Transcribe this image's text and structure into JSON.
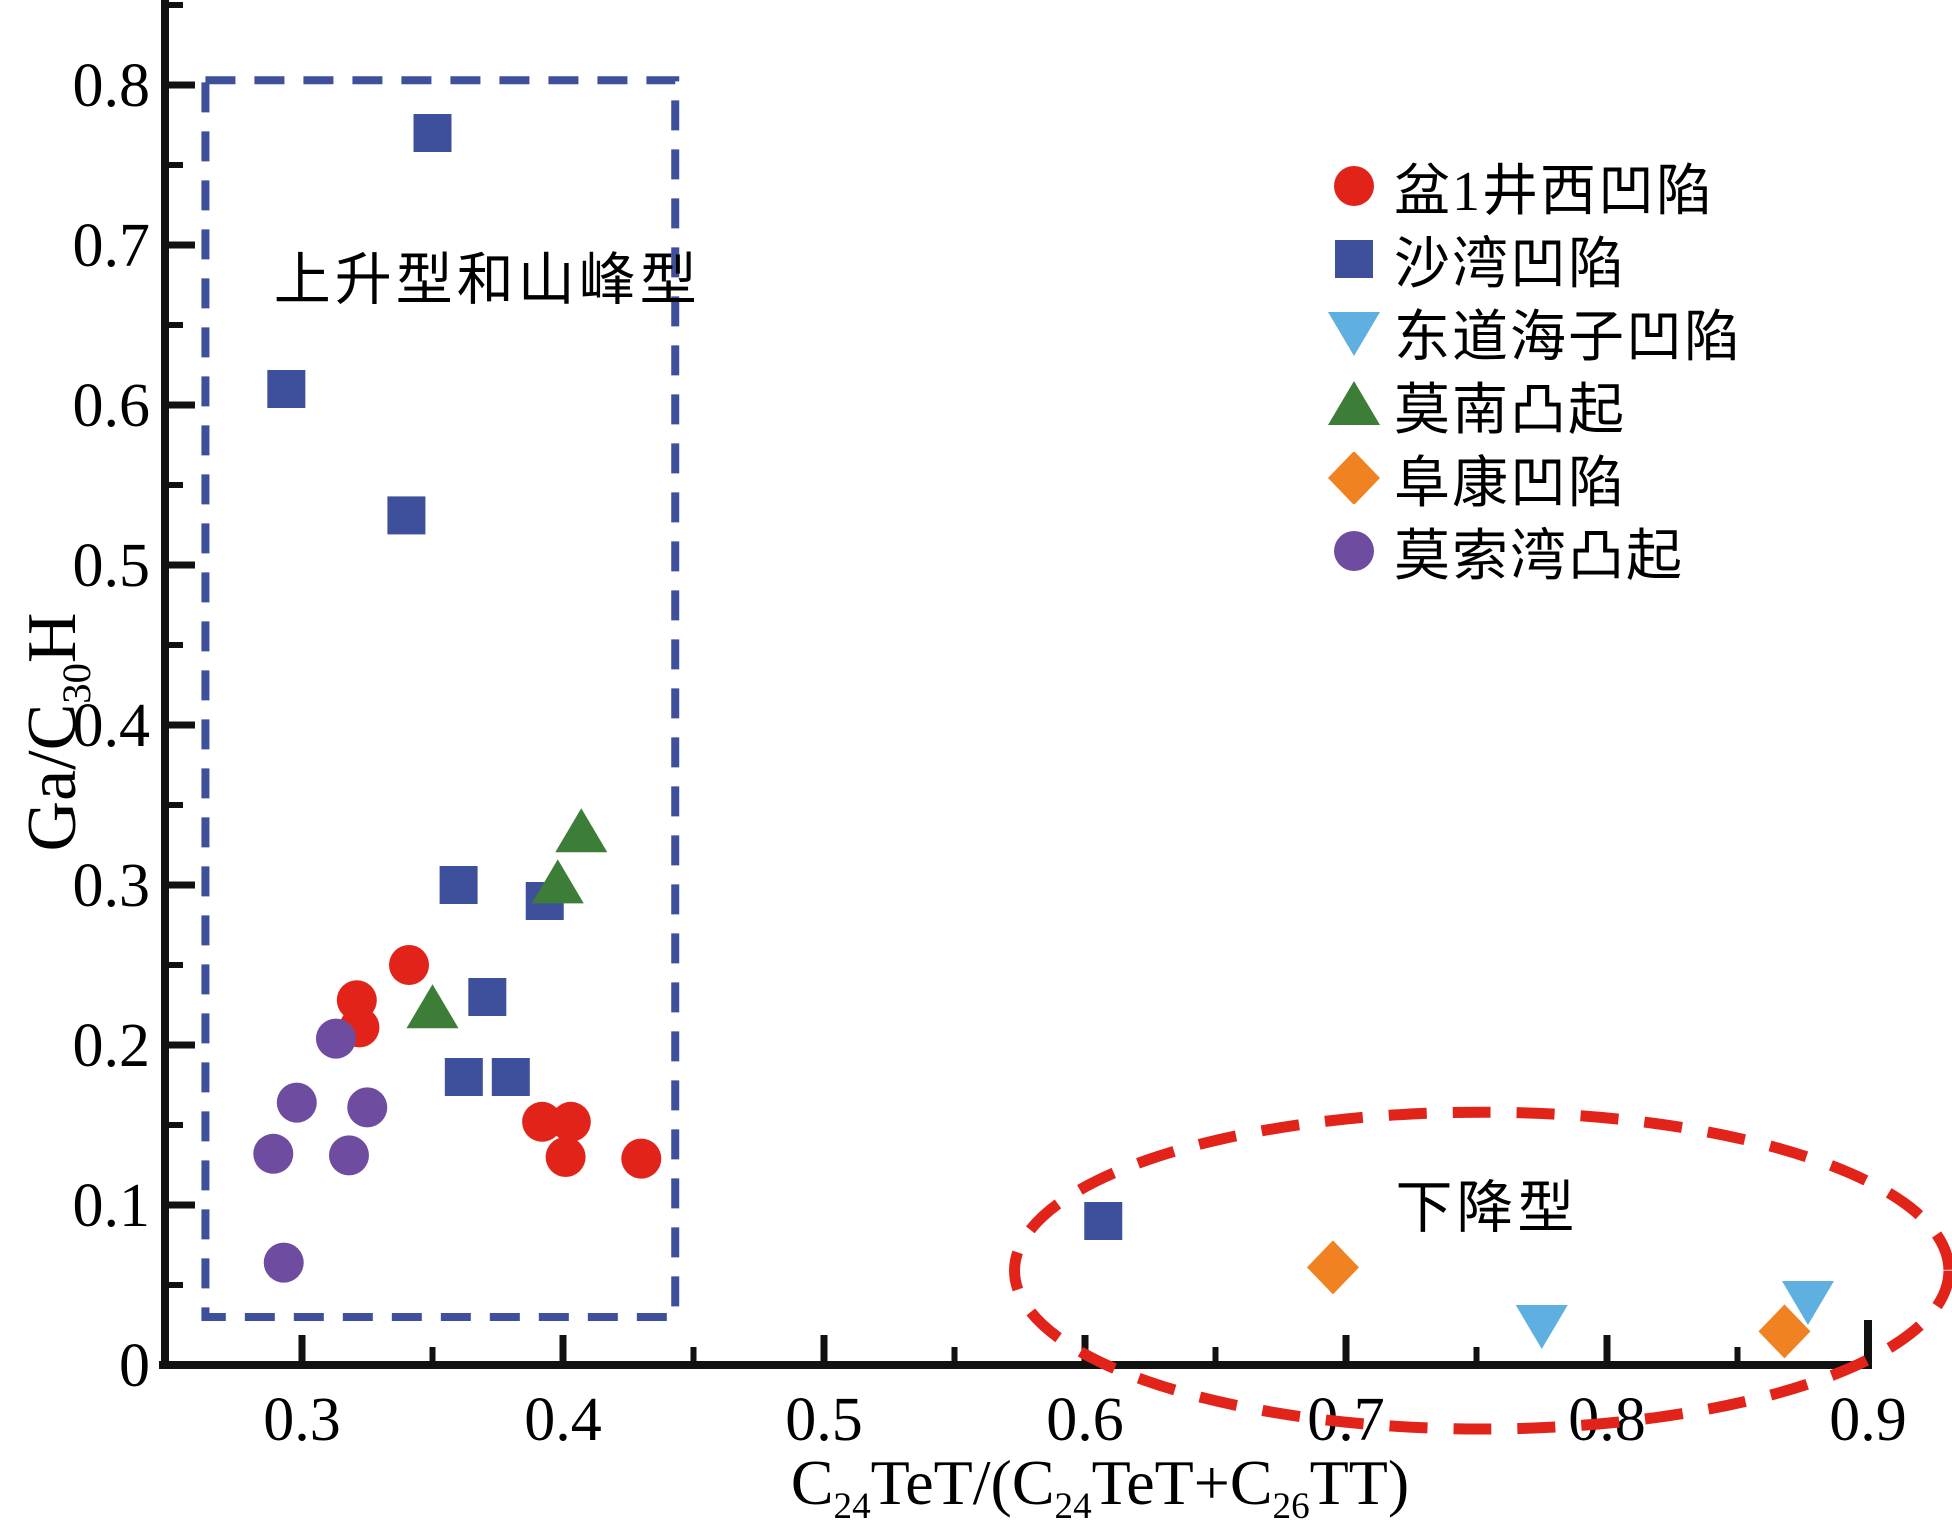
{
  "chart_data": {
    "type": "scatter",
    "title": "",
    "x_axis": {
      "label_parts": {
        "p1": "C",
        "s1": "24",
        "p2": "TeT/(C",
        "s2": "24",
        "p3": "TeT+C",
        "s3": "26",
        "p4": "TT)"
      },
      "major_ticks": [
        0.3,
        0.4,
        0.5,
        0.6,
        0.7,
        0.8,
        0.9
      ],
      "minor_ticks": [
        0.35,
        0.45,
        0.55,
        0.65,
        0.75,
        0.85
      ],
      "range": [
        0.248,
        0.903
      ]
    },
    "y_axis": {
      "label_parts": {
        "p1": "Ga/C",
        "s1": "30",
        "p2": "H"
      },
      "major_ticks": [
        0,
        0.1,
        0.2,
        0.3,
        0.4,
        0.5,
        0.6,
        0.7,
        0.8
      ],
      "minor_ticks": [
        0.05,
        0.15,
        0.25,
        0.35,
        0.45,
        0.55,
        0.65,
        0.75,
        0.85
      ],
      "range": [
        0,
        0.855
      ]
    },
    "series": [
      {
        "name": "盆1井西凹陷",
        "marker": "circle",
        "color": "#e2231a",
        "points": [
          [
            0.341,
            0.25
          ],
          [
            0.321,
            0.228
          ],
          [
            0.322,
            0.211
          ],
          [
            0.392,
            0.152
          ],
          [
            0.403,
            0.152
          ],
          [
            0.401,
            0.13
          ],
          [
            0.43,
            0.129
          ]
        ]
      },
      {
        "name": "沙湾凹陷",
        "marker": "square",
        "color": "#3e4f9b",
        "points": [
          [
            0.35,
            0.77
          ],
          [
            0.294,
            0.61
          ],
          [
            0.34,
            0.531
          ],
          [
            0.36,
            0.3
          ],
          [
            0.393,
            0.29
          ],
          [
            0.371,
            0.23
          ],
          [
            0.362,
            0.18
          ],
          [
            0.38,
            0.18
          ],
          [
            0.607,
            0.09
          ]
        ]
      },
      {
        "name": "东道海子凹陷",
        "marker": "triangle-down",
        "color": "#5fb0e0",
        "points": [
          [
            0.775,
            0.025
          ],
          [
            0.877,
            0.04
          ]
        ]
      },
      {
        "name": "莫南凸起",
        "marker": "triangle-up",
        "color": "#3c7d37",
        "points": [
          [
            0.407,
            0.333
          ],
          [
            0.398,
            0.301
          ],
          [
            0.35,
            0.223
          ]
        ]
      },
      {
        "name": "阜康凹陷",
        "marker": "diamond",
        "color": "#f08222",
        "points": [
          [
            0.695,
            0.061
          ],
          [
            0.868,
            0.021
          ]
        ]
      },
      {
        "name": "莫索湾凸起",
        "marker": "circle",
        "color": "#6e4da0",
        "points": [
          [
            0.313,
            0.204
          ],
          [
            0.298,
            0.164
          ],
          [
            0.325,
            0.161
          ],
          [
            0.289,
            0.132
          ],
          [
            0.318,
            0.131
          ],
          [
            0.293,
            0.064
          ]
        ]
      }
    ],
    "annotations": {
      "rising": {
        "text": "上升型和山峰型",
        "x": 0.371,
        "y": 0.681
      },
      "falling": {
        "text": "下降型",
        "x": 0.754,
        "y": 0.101
      }
    },
    "regions": {
      "rect": {
        "x0": 0.263,
        "x1": 0.443,
        "y0": 0.03,
        "y1": 0.803,
        "color": "#3e4f9b"
      },
      "ellipse": {
        "cx": 0.752,
        "cy": 0.059,
        "rx": 0.179,
        "ry": 0.099,
        "color": "#e2231a"
      }
    },
    "legend_position": "upper-right",
    "grid": false,
    "axis_color": "#111111"
  }
}
